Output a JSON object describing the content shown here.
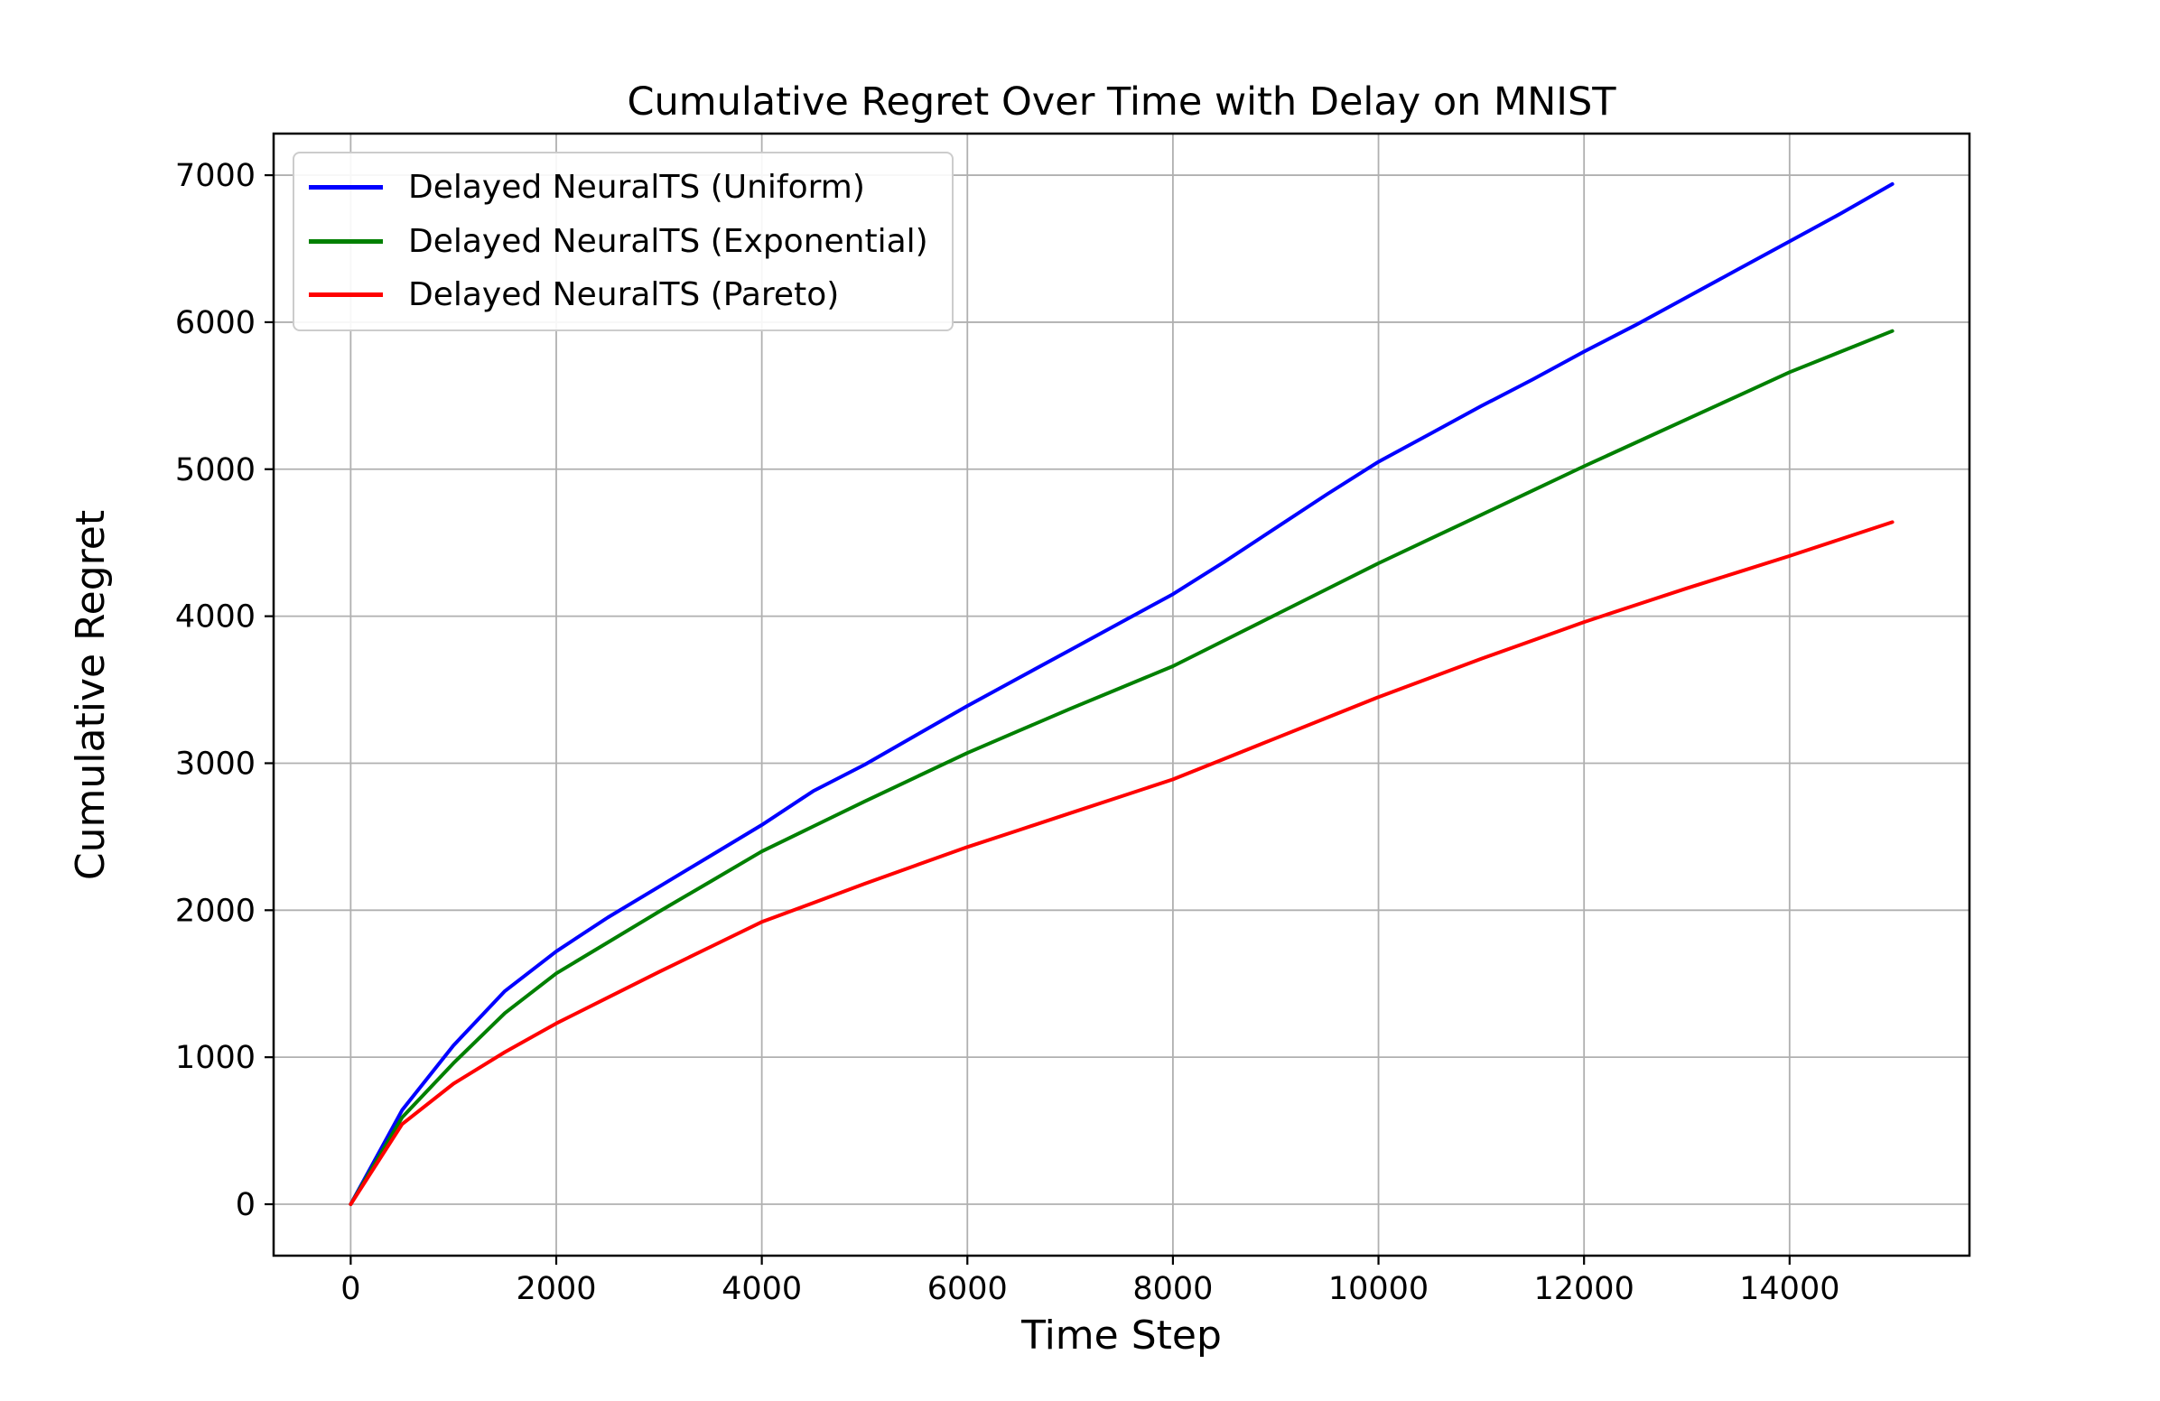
{
  "figure": {
    "title": "Cumulative Regret Over Time with Delay on MNIST",
    "xlabel": "Time Step",
    "ylabel": "Cumulative Regret"
  },
  "legend": {
    "position": "upper left",
    "items": [
      {
        "label": "Delayed NeuralTS (Uniform)",
        "color": "#0000ff"
      },
      {
        "label": "Delayed NeuralTS (Exponential)",
        "color": "#008000"
      },
      {
        "label": "Delayed NeuralTS (Pareto)",
        "color": "#ff0000"
      }
    ]
  },
  "colors": {
    "grid": "#b0b0b0",
    "spine": "#000000",
    "background": "#ffffff",
    "uniform_line": "#0000ff",
    "exponential_line": "#008000",
    "pareto_line": "#ff0000"
  },
  "chart_data": {
    "type": "line",
    "title": "Cumulative Regret Over Time with Delay on MNIST",
    "xlabel": "Time Step",
    "ylabel": "Cumulative Regret",
    "xlim": [
      -750,
      15750
    ],
    "ylim": [
      -350,
      7283
    ],
    "xticks": [
      0,
      2000,
      4000,
      6000,
      8000,
      10000,
      12000,
      14000
    ],
    "yticks": [
      0,
      1000,
      2000,
      3000,
      4000,
      5000,
      6000,
      7000
    ],
    "grid": true,
    "legend_position": "upper left",
    "x": [
      0,
      500,
      1000,
      1500,
      2000,
      2500,
      3000,
      3500,
      4000,
      4500,
      5000,
      5500,
      6000,
      6500,
      7000,
      7500,
      8000,
      8500,
      9000,
      9500,
      10000,
      10500,
      11000,
      11500,
      12000,
      12500,
      13000,
      13500,
      14000,
      14500,
      15000
    ],
    "series": [
      {
        "name": "Delayed NeuralTS (Uniform)",
        "color": "#0000ff",
        "values": [
          0,
          640,
          1080,
          1450,
          1720,
          1950,
          2160,
          2370,
          2580,
          2810,
          2990,
          3190,
          3390,
          3580,
          3770,
          3960,
          4150,
          4370,
          4600,
          4830,
          5050,
          5240,
          5430,
          5610,
          5800,
          5980,
          6170,
          6360,
          6550,
          6740,
          6940
        ]
      },
      {
        "name": "Delayed NeuralTS (Exponential)",
        "color": "#008000",
        "values": [
          0,
          590,
          960,
          1300,
          1570,
          1780,
          1990,
          2195,
          2400,
          2570,
          2740,
          2905,
          3070,
          3220,
          3370,
          3515,
          3660,
          3835,
          4010,
          4185,
          4360,
          4525,
          4690,
          4855,
          5020,
          5180,
          5340,
          5500,
          5660,
          5800,
          5940
        ]
      },
      {
        "name": "Delayed NeuralTS (Pareto)",
        "color": "#ff0000",
        "values": [
          0,
          545,
          820,
          1035,
          1230,
          1405,
          1580,
          1750,
          1920,
          2050,
          2180,
          2305,
          2430,
          2545,
          2660,
          2775,
          2890,
          3030,
          3170,
          3310,
          3450,
          3580,
          3710,
          3835,
          3960,
          4075,
          4190,
          4300,
          4410,
          4525,
          4640
        ]
      }
    ]
  }
}
